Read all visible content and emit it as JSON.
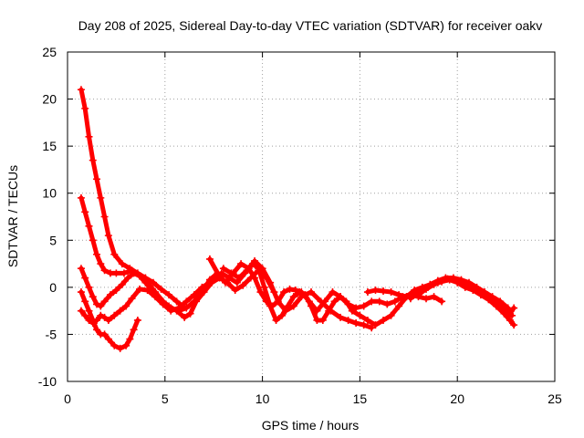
{
  "chart_data": {
    "type": "scatter",
    "title": "Day 208 of 2025, Sidereal Day-to-day VTEC variation (SDTVAR) for receiver oakv",
    "xlabel": "GPS time / hours",
    "ylabel": "SDTVAR / TECUs",
    "xlim": [
      0,
      25
    ],
    "ylim": [
      -10,
      25
    ],
    "x_ticks": [
      0,
      5,
      10,
      15,
      20,
      25
    ],
    "y_ticks": [
      -10,
      -5,
      0,
      5,
      10,
      15,
      20,
      25
    ],
    "x_tick_labels": [
      "0",
      "5",
      "10",
      "15",
      "20",
      "25"
    ],
    "y_tick_labels": [
      "-10",
      "-5",
      "0",
      "5",
      "10",
      "15",
      "20",
      "25"
    ],
    "grid": true,
    "marker": "+",
    "series_color": "#ff0000",
    "series": [
      {
        "name": "track-1",
        "x": [
          0.7,
          0.9,
          1.1,
          1.3,
          1.5,
          1.7,
          1.9,
          2.1,
          2.4,
          2.8,
          3.2,
          3.6,
          4.0,
          4.4,
          4.8,
          5.2,
          5.6,
          5.9
        ],
        "y": [
          21.0,
          19.0,
          16.0,
          13.5,
          11.5,
          9.5,
          7.5,
          5.5,
          3.5,
          2.5,
          2.0,
          1.5,
          1.0,
          0.5,
          -0.2,
          -0.8,
          -1.5,
          -2.0
        ]
      },
      {
        "name": "track-2",
        "x": [
          0.7,
          0.9,
          1.1,
          1.3,
          1.5,
          1.7,
          1.9,
          2.2,
          2.5,
          2.9,
          3.3,
          3.7,
          4.1,
          4.5,
          4.9,
          5.3,
          5.7,
          6.1,
          6.5,
          6.9,
          7.3,
          7.7
        ],
        "y": [
          9.5,
          8.0,
          6.5,
          5.0,
          3.5,
          2.5,
          1.8,
          1.5,
          1.5,
          1.5,
          1.8,
          1.2,
          0.5,
          -0.5,
          -1.5,
          -2.2,
          -2.5,
          -2.2,
          -1.5,
          -0.5,
          0.8,
          1.5
        ]
      },
      {
        "name": "track-3",
        "x": [
          0.7,
          0.9,
          1.1,
          1.3,
          1.5,
          1.7,
          1.9,
          2.2,
          2.5,
          2.8,
          3.1,
          3.4,
          3.7,
          4.0,
          4.4,
          4.8,
          5.2,
          5.6,
          6.0,
          6.3,
          6.6,
          7.0,
          7.4,
          7.8,
          8.2,
          8.6,
          9.0,
          9.4,
          9.8,
          10.2,
          10.6
        ],
        "y": [
          2.0,
          1.0,
          0.0,
          -1.0,
          -1.8,
          -2.0,
          -1.5,
          -0.8,
          -0.3,
          0.3,
          1.0,
          1.5,
          1.2,
          0.5,
          -0.5,
          -1.5,
          -2.0,
          -2.5,
          -3.2,
          -2.8,
          -1.5,
          -0.5,
          0.5,
          1.0,
          0.5,
          -0.3,
          0.2,
          1.0,
          1.8,
          1.0,
          -0.5
        ]
      },
      {
        "name": "track-4",
        "x": [
          0.7,
          0.9,
          1.1,
          1.3,
          1.5,
          1.7,
          1.9,
          2.1,
          2.4,
          2.7,
          3.0,
          3.2,
          3.4,
          3.6
        ],
        "y": [
          -0.5,
          -1.5,
          -2.5,
          -3.5,
          -4.5,
          -5.0,
          -5.0,
          -5.5,
          -6.2,
          -6.5,
          -6.2,
          -5.5,
          -4.5,
          -3.5
        ]
      },
      {
        "name": "track-5",
        "x": [
          0.7,
          0.9,
          1.1,
          1.3,
          1.5,
          1.7,
          1.9,
          2.1,
          2.4,
          2.7,
          3.0,
          3.3,
          3.7,
          4.1,
          4.5,
          4.9,
          5.3,
          5.7,
          6.1,
          6.5,
          6.9,
          7.3
        ],
        "y": [
          -2.5,
          -3.0,
          -3.5,
          -3.8,
          -3.5,
          -3.0,
          -3.2,
          -3.5,
          -3.0,
          -2.5,
          -2.0,
          -1.2,
          -0.2,
          -0.3,
          -1.0,
          -1.8,
          -2.5,
          -2.2,
          -1.5,
          -0.8,
          0.0,
          0.5
        ]
      },
      {
        "name": "track-6",
        "x": [
          7.3,
          7.7,
          8.1,
          8.5,
          8.9,
          9.3,
          9.6,
          9.9,
          10.2,
          10.5,
          10.8,
          11.1,
          11.4,
          11.7,
          12.0,
          12.4,
          12.8,
          13.2,
          13.6,
          14.0,
          14.4,
          14.8,
          15.2,
          15.6,
          16.0,
          16.4,
          16.8,
          17.2,
          17.6,
          18.0,
          18.4,
          18.8,
          19.2
        ],
        "y": [
          3.0,
          1.5,
          0.5,
          1.5,
          2.5,
          2.0,
          1.0,
          -0.5,
          -1.5,
          -2.0,
          -1.5,
          -0.5,
          -0.2,
          -0.3,
          -0.5,
          -1.5,
          -2.5,
          -1.5,
          -0.5,
          -1.0,
          -1.8,
          -2.2,
          -2.0,
          -1.5,
          -1.5,
          -1.8,
          -1.5,
          -1.0,
          -0.8,
          -1.0,
          -1.2,
          -1.0,
          -1.5
        ]
      },
      {
        "name": "track-7",
        "x": [
          7.5,
          7.9,
          8.3,
          8.7,
          9.1,
          9.5,
          9.8,
          10.1,
          10.4,
          10.7,
          11.0,
          11.3,
          11.6,
          11.9,
          12.2,
          12.5,
          12.8,
          13.1,
          13.4,
          13.7,
          14.0,
          14.3,
          14.6,
          15.0,
          15.4,
          15.8,
          16.2,
          16.6,
          17.0,
          17.4,
          17.8
        ],
        "y": [
          1.0,
          1.5,
          1.0,
          0.5,
          1.5,
          2.5,
          2.0,
          0.0,
          -2.0,
          -3.5,
          -3.0,
          -2.0,
          -1.0,
          -0.5,
          -0.8,
          -2.0,
          -3.5,
          -3.5,
          -2.5,
          -1.5,
          -1.0,
          -1.5,
          -2.5,
          -3.0,
          -3.5,
          -4.0,
          -3.5,
          -3.0,
          -2.0,
          -1.0,
          -0.5
        ]
      },
      {
        "name": "track-8",
        "x": [
          8.0,
          8.4,
          8.8,
          9.2,
          9.6,
          10.0,
          10.4,
          10.8,
          11.2,
          11.6,
          12.0,
          12.5,
          13.0,
          13.5,
          14.0,
          14.4,
          14.8,
          15.2,
          15.6
        ],
        "y": [
          2.0,
          1.5,
          1.0,
          1.8,
          2.8,
          2.0,
          0.5,
          -1.5,
          -2.5,
          -2.0,
          -1.0,
          -0.5,
          -1.5,
          -2.5,
          -3.2,
          -3.5,
          -3.8,
          -4.0,
          -4.3
        ]
      },
      {
        "name": "track-9",
        "x": [
          15.4,
          15.8,
          16.2,
          16.6,
          17.0,
          17.4,
          17.8,
          18.2,
          18.6,
          19.0,
          19.4,
          19.8,
          20.2,
          20.6,
          21.0,
          21.4,
          21.8,
          22.2,
          22.6,
          22.8
        ],
        "y": [
          -0.5,
          -0.3,
          -0.4,
          -0.5,
          -0.8,
          -1.0,
          -0.3,
          0.0,
          0.3,
          0.7,
          1.0,
          1.0,
          0.8,
          0.5,
          0.0,
          -0.5,
          -1.0,
          -1.5,
          -2.2,
          -3.0
        ]
      },
      {
        "name": "track-10",
        "x": [
          17.6,
          18.0,
          18.4,
          18.8,
          19.2,
          19.6,
          20.0,
          20.4,
          20.8,
          21.2,
          21.6,
          22.0,
          22.4,
          22.7,
          22.9
        ],
        "y": [
          -1.2,
          -0.6,
          -0.2,
          0.3,
          0.6,
          0.8,
          0.5,
          0.0,
          -0.3,
          -0.8,
          -1.3,
          -2.0,
          -2.8,
          -3.5,
          -4.0
        ]
      },
      {
        "name": "track-11",
        "x": [
          18.0,
          18.5,
          19.0,
          19.5,
          20.0,
          20.5,
          21.0,
          21.5,
          22.0,
          22.4,
          22.7,
          22.9
        ],
        "y": [
          -0.8,
          0.0,
          0.5,
          0.9,
          0.6,
          0.2,
          -0.3,
          -0.9,
          -1.5,
          -2.2,
          -2.8,
          -2.2
        ]
      }
    ]
  }
}
